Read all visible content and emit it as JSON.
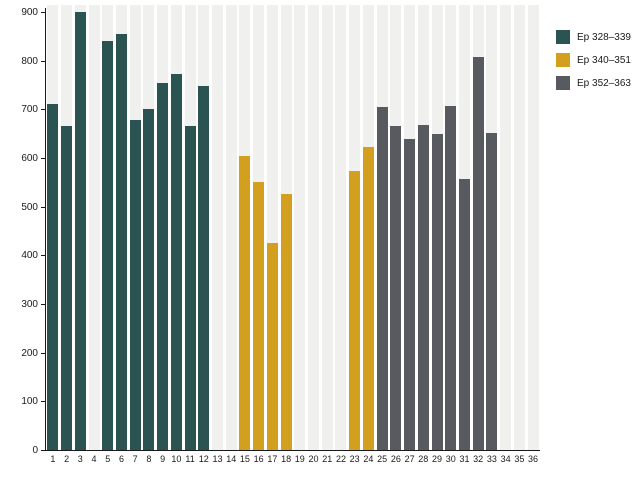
{
  "chart_data": {
    "type": "bar",
    "title": "",
    "xlabel": "",
    "ylabel": "",
    "ylim": [
      0,
      900
    ],
    "y_ticks": [
      0,
      100,
      200,
      300,
      400,
      500,
      600,
      700,
      800,
      900
    ],
    "grid": false,
    "background_bands": true,
    "band_color": "#f0f0ef",
    "legend_position": "top-right",
    "x_categories": [
      "1",
      "2",
      "3",
      "4",
      "5",
      "6",
      "7",
      "8",
      "9",
      "10",
      "11",
      "12",
      "13",
      "14",
      "15",
      "16",
      "17",
      "18",
      "19",
      "20",
      "21",
      "22",
      "23",
      "24",
      "25",
      "26",
      "27",
      "28",
      "29",
      "30",
      "31",
      "32",
      "33",
      "34",
      "35",
      "36"
    ],
    "values": [
      710,
      665,
      900,
      null,
      840,
      855,
      678,
      700,
      754,
      772,
      665,
      748,
      null,
      null,
      605,
      550,
      425,
      526,
      null,
      null,
      null,
      null,
      573,
      623,
      704,
      665,
      640,
      668,
      650,
      706,
      556,
      807,
      651,
      null,
      null,
      null
    ],
    "series": [
      {
        "name": "Ep 328–339",
        "color": "#2a5352",
        "x_from": 1,
        "x_to": 12
      },
      {
        "name": "Ep 340–351",
        "color": "#d29f1f",
        "x_from": 13,
        "x_to": 24
      },
      {
        "name": "Ep 352–363",
        "color": "#575b60",
        "x_from": 25,
        "x_to": 36
      }
    ]
  }
}
